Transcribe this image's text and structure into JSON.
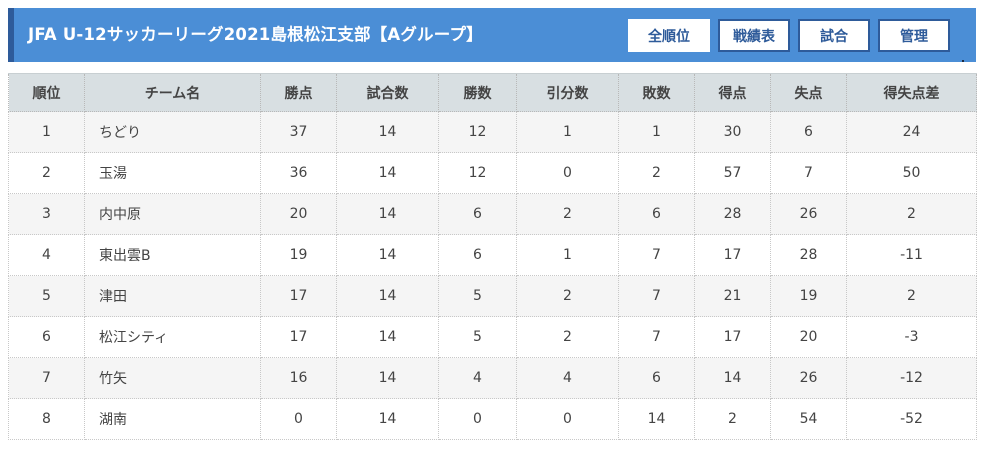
{
  "header": {
    "title": "JFA U-12サッカーリーグ2021島根松江支部【Aグループ】",
    "buttons": [
      "全順位",
      "戦績表",
      "試合",
      "管理"
    ]
  },
  "table": {
    "columns": [
      "順位",
      "チーム名",
      "勝点",
      "試合数",
      "勝数",
      "引分数",
      "敗数",
      "得点",
      "失点",
      "得失点差"
    ],
    "rows": [
      [
        "1",
        "ちどり",
        "37",
        "14",
        "12",
        "1",
        "1",
        "30",
        "6",
        "24"
      ],
      [
        "2",
        "玉湯",
        "36",
        "14",
        "12",
        "0",
        "2",
        "57",
        "7",
        "50"
      ],
      [
        "3",
        "内中原",
        "20",
        "14",
        "6",
        "2",
        "6",
        "28",
        "26",
        "2"
      ],
      [
        "4",
        "東出雲B",
        "19",
        "14",
        "6",
        "1",
        "7",
        "17",
        "28",
        "-11"
      ],
      [
        "5",
        "津田",
        "17",
        "14",
        "5",
        "2",
        "7",
        "21",
        "19",
        "2"
      ],
      [
        "6",
        "松江シティ",
        "17",
        "14",
        "5",
        "2",
        "7",
        "17",
        "20",
        "-3"
      ],
      [
        "7",
        "竹矢",
        "16",
        "14",
        "4",
        "4",
        "6",
        "14",
        "26",
        "-12"
      ],
      [
        "8",
        "湖南",
        "0",
        "14",
        "0",
        "0",
        "14",
        "2",
        "54",
        "-52"
      ]
    ]
  },
  "colors": {
    "header_bg": "#4b8ed6",
    "header_accent": "#2e5b9a",
    "table_head_bg": "#d8dfe2",
    "row_odd_bg": "#f5f5f5"
  }
}
